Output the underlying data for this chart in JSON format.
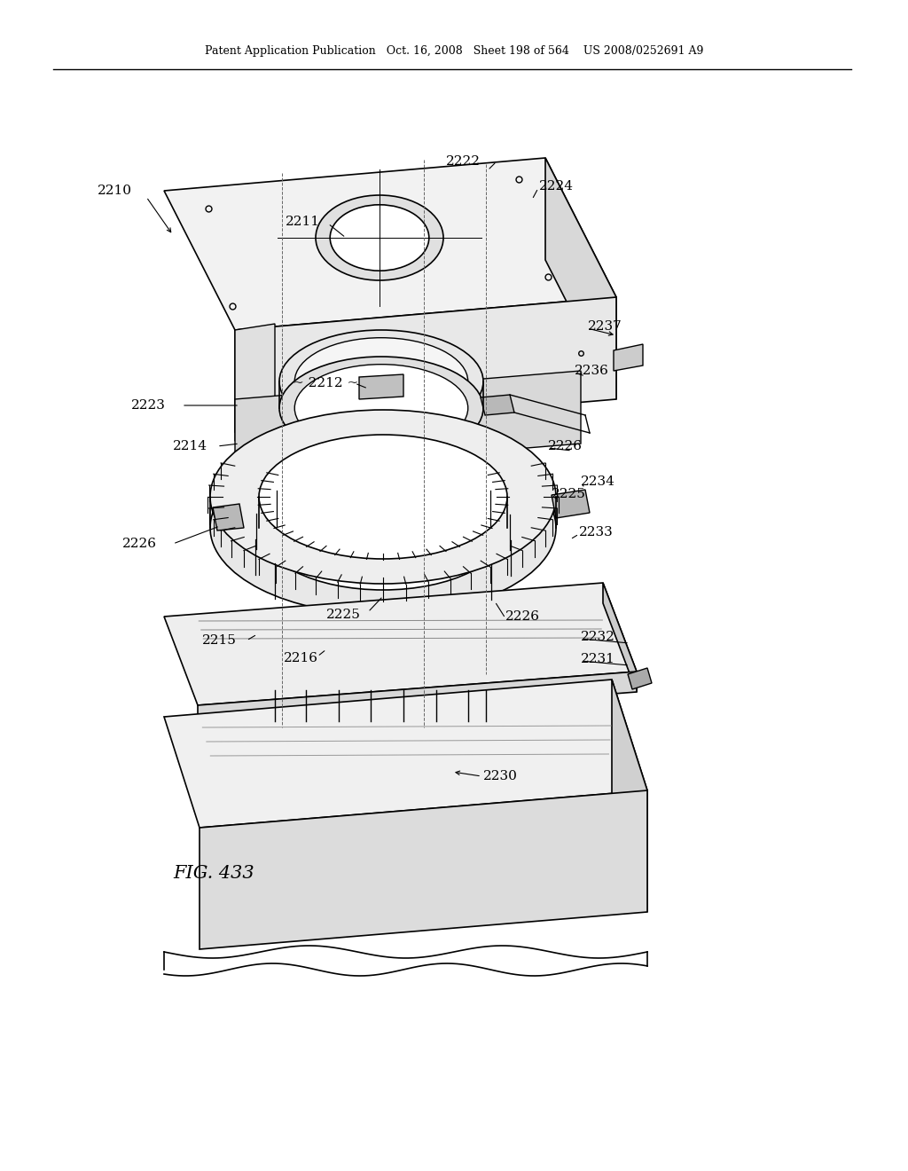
{
  "header_text": "Patent Application Publication   Oct. 16, 2008   Sheet 198 of 564    US 2008/0252691 A9",
  "figure_label": "FIG. 433",
  "bg_color": "#ffffff",
  "line_color": "#000000"
}
